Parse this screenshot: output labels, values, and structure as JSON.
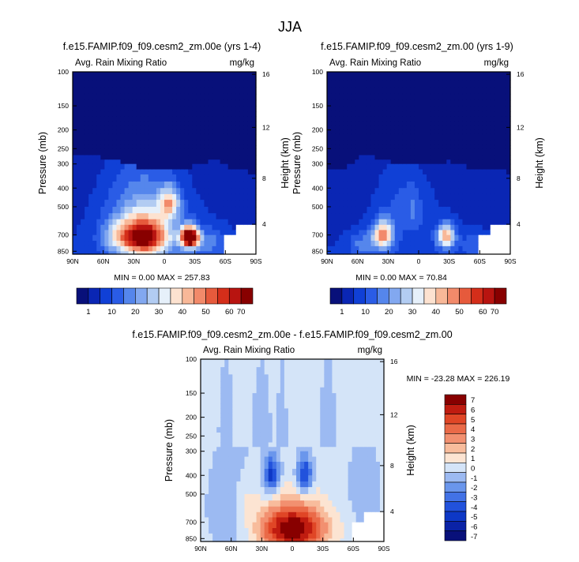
{
  "figure_title": "JJA",
  "chart_data": [
    {
      "type": "heatmap",
      "title": "f.e15.FAMIP.f09_f09.cesm2_zm.00e (yrs 1-4)",
      "left_subtitle": "Avg. Rain Mixing Ratio",
      "right_subtitle": "mg/kg",
      "ylabel": "Pressure (mb)",
      "ylabel_right": "Height (km)",
      "x_ticks": [
        "90N",
        "60N",
        "30N",
        "0",
        "30S",
        "60S",
        "90S"
      ],
      "y_ticks": [
        "100",
        "150",
        "200",
        "250",
        "300",
        "400",
        "500",
        "700",
        "850"
      ],
      "y_ticks_right": [
        "16",
        "12",
        "8",
        "4"
      ],
      "stats": "MIN =  0.00  MAX = 257.83",
      "min": 0.0,
      "max": 257.83,
      "colorbar": {
        "orientation": "horizontal",
        "labels": [
          "1",
          "10",
          "20",
          "30",
          "40",
          "50",
          "60",
          "70"
        ]
      }
    },
    {
      "type": "heatmap",
      "title": "f.e15.FAMIP.f09_f09.cesm2_zm.00 (yrs 1-9)",
      "left_subtitle": "Avg. Rain Mixing Ratio",
      "right_subtitle": "mg/kg",
      "ylabel": "Pressure (mb)",
      "ylabel_right": "Height (km)",
      "x_ticks": [
        "90N",
        "60N",
        "30N",
        "0",
        "30S",
        "60S",
        "90S"
      ],
      "y_ticks": [
        "100",
        "150",
        "200",
        "250",
        "300",
        "400",
        "500",
        "700",
        "850"
      ],
      "y_ticks_right": [
        "16",
        "12",
        "8",
        "4"
      ],
      "stats": "MIN =  0.00  MAX = 70.84",
      "min": 0.0,
      "max": 70.84,
      "colorbar": {
        "orientation": "horizontal",
        "labels": [
          "1",
          "10",
          "20",
          "30",
          "40",
          "50",
          "60",
          "70"
        ]
      }
    },
    {
      "type": "heatmap",
      "title": "f.e15.FAMIP.f09_f09.cesm2_zm.00e - f.e15.FAMIP.f09_f09.cesm2_zm.00",
      "left_subtitle": "Avg. Rain Mixing Ratio",
      "right_subtitle": "mg/kg",
      "ylabel": "Pressure (mb)",
      "ylabel_right": "Height (km)",
      "x_ticks": [
        "90N",
        "60N",
        "30N",
        "0",
        "30S",
        "60S",
        "90S"
      ],
      "y_ticks": [
        "100",
        "150",
        "200",
        "250",
        "300",
        "400",
        "500",
        "700",
        "850"
      ],
      "y_ticks_right": [
        "16",
        "12",
        "8",
        "4"
      ],
      "stats": "MIN = -23.28  MAX = 226.19",
      "min": -23.28,
      "max": 226.19,
      "colorbar": {
        "orientation": "vertical",
        "labels": [
          "7",
          "6",
          "5",
          "4",
          "3",
          "2",
          "1",
          "0",
          "-1",
          "-2",
          "-3",
          "-4",
          "-5",
          "-6",
          "-7"
        ]
      }
    }
  ],
  "colors": {
    "abs_palette": [
      "#08107a",
      "#0a26b4",
      "#1040d6",
      "#2a5ce6",
      "#5586ec",
      "#82a8f0",
      "#b2ccf2",
      "#e6f0fa",
      "#fde2d0",
      "#f8b898",
      "#f28a6a",
      "#e65a3c",
      "#d42e1a",
      "#b81410",
      "#880000"
    ],
    "diff_palette": [
      "#08107a",
      "#0a22a6",
      "#0e38c6",
      "#2252dc",
      "#4272e6",
      "#6a96ec",
      "#9cbaf2",
      "#d4e4f8",
      "#fce4d2",
      "#f8bc9c",
      "#f29070",
      "#ea6a48",
      "#e04626",
      "#c01c10",
      "#880000"
    ]
  }
}
